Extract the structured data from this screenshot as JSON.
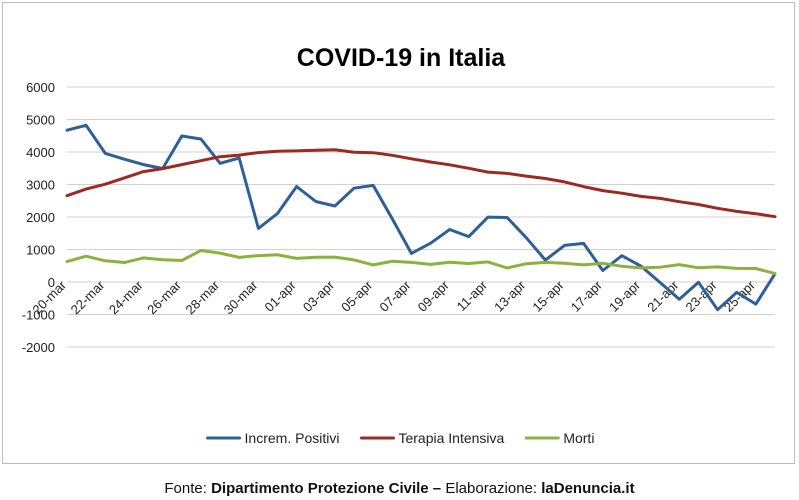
{
  "chart_data": {
    "type": "line",
    "title": "COVID-19 in Italia",
    "xlabel": "",
    "ylabel": "",
    "ylim": [
      -2000,
      6000
    ],
    "yticks": [
      6000,
      5000,
      4000,
      3000,
      2000,
      1000,
      0,
      -1000,
      -2000
    ],
    "grid": true,
    "legend_position": "bottom",
    "categories": [
      "20-mar",
      "21-mar",
      "22-mar",
      "23-mar",
      "24-mar",
      "25-mar",
      "26-mar",
      "27-mar",
      "28-mar",
      "29-mar",
      "30-mar",
      "31-mar",
      "01-apr",
      "02-apr",
      "03-apr",
      "04-apr",
      "05-apr",
      "06-apr",
      "07-apr",
      "08-apr",
      "09-apr",
      "10-apr",
      "11-apr",
      "12-apr",
      "13-apr",
      "14-apr",
      "15-apr",
      "16-apr",
      "17-apr",
      "18-apr",
      "19-apr",
      "20-apr",
      "21-apr",
      "22-apr",
      "23-apr",
      "24-apr",
      "25-apr",
      "26-apr"
    ],
    "tick_labels": [
      "20-mar",
      "22-mar",
      "24-mar",
      "26-mar",
      "28-mar",
      "30-mar",
      "01-apr",
      "03-apr",
      "05-apr",
      "07-apr",
      "09-apr",
      "11-apr",
      "13-apr",
      "15-apr",
      "17-apr",
      "19-apr",
      "21-apr",
      "23-apr",
      "25-apr"
    ],
    "series": [
      {
        "name": "Increm. Positivi",
        "color": "#2e5f97",
        "values": [
          4670,
          4821,
          3957,
          3780,
          3612,
          3491,
          4492,
          4401,
          3651,
          3815,
          1648,
          2107,
          2937,
          2477,
          2339,
          2886,
          2972,
          1941,
          880,
          1195,
          1615,
          1396,
          1996,
          1984,
          1363,
          675,
          1127,
          1189,
          355,
          809,
          486,
          -20,
          -528,
          -10,
          -851,
          -321,
          -680,
          256
        ]
      },
      {
        "name": "Terapia Intensiva",
        "color": "#9b2a22",
        "values": [
          2655,
          2857,
          3009,
          3204,
          3396,
          3489,
          3612,
          3732,
          3856,
          3906,
          3981,
          4023,
          4035,
          4053,
          4068,
          3994,
          3977,
          3898,
          3792,
          3693,
          3605,
          3497,
          3381,
          3343,
          3260,
          3186,
          3079,
          2936,
          2812,
          2733,
          2635,
          2573,
          2471,
          2384,
          2267,
          2173,
          2102,
          2009
        ]
      },
      {
        "name": "Morti",
        "color": "#8bb23c",
        "values": [
          627,
          793,
          651,
          601,
          743,
          683,
          662,
          969,
          889,
          756,
          812,
          837,
          727,
          760,
          766,
          681,
          525,
          636,
          604,
          542,
          610,
          570,
          619,
          431,
          564,
          602,
          578,
          525,
          575,
          482,
          433,
          454,
          534,
          437,
          464,
          420,
          415,
          260
        ]
      }
    ]
  },
  "credit": {
    "prefix": "Fonte: ",
    "source": "Dipartimento Protezione Civile",
    "dash": " – ",
    "elab_label": "Elaborazione: ",
    "site": "laDenuncia.it"
  }
}
